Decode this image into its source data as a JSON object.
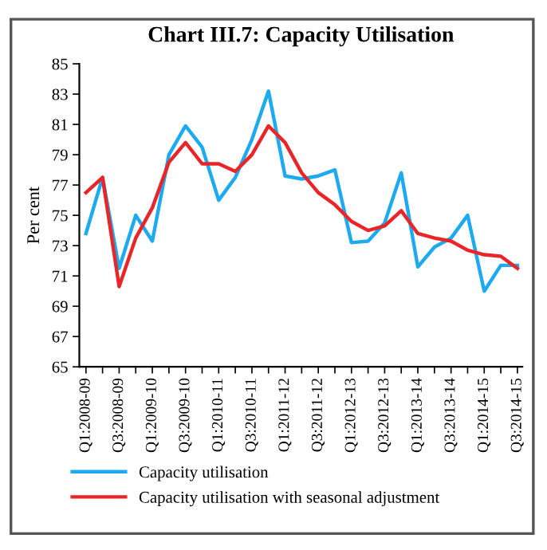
{
  "chart_data": {
    "type": "line",
    "title": "Chart III.7: Capacity Utilisation",
    "ylabel": "Per cent",
    "categories": [
      "Q1:2008-09",
      null,
      "Q3:2008-09",
      null,
      "Q1:2009-10",
      null,
      "Q3:2009-10",
      null,
      "Q1:2010-11",
      null,
      "Q3:2010-11",
      null,
      "Q1:2011-12",
      null,
      "Q3:2011-12",
      null,
      "Q1:2012-13",
      null,
      "Q3:2012-13",
      null,
      "Q1:2013-14",
      null,
      "Q3:2013-14",
      null,
      "Q1:2014-15",
      null,
      "Q3:2014-15"
    ],
    "series": [
      {
        "name": "Capacity utilisation",
        "color": "#1eaaf1",
        "values": [
          73.8,
          77.5,
          71.5,
          75.0,
          73.3,
          79.0,
          80.9,
          79.5,
          76.0,
          77.5,
          80.0,
          83.2,
          77.6,
          77.4,
          77.6,
          78.0,
          73.2,
          73.3,
          74.5,
          77.8,
          71.6,
          72.9,
          73.5,
          75.0,
          70.0,
          71.7,
          71.7
        ]
      },
      {
        "name": "Capacity utilisation with seasonal adjustment",
        "color": "#e8262a",
        "values": [
          76.5,
          77.5,
          70.3,
          73.5,
          75.5,
          78.5,
          79.8,
          78.4,
          78.4,
          77.9,
          79.0,
          80.9,
          79.8,
          77.8,
          76.5,
          75.7,
          74.6,
          74.0,
          74.3,
          75.3,
          73.8,
          73.5,
          73.3,
          72.7,
          72.4,
          72.3,
          71.5
        ]
      }
    ],
    "ylim": [
      65,
      85
    ],
    "yticks": [
      65,
      67,
      69,
      71,
      73,
      75,
      77,
      79,
      81,
      83,
      85
    ],
    "grid": false,
    "legend": "bottom",
    "marker": "none",
    "line_style": "solid"
  }
}
